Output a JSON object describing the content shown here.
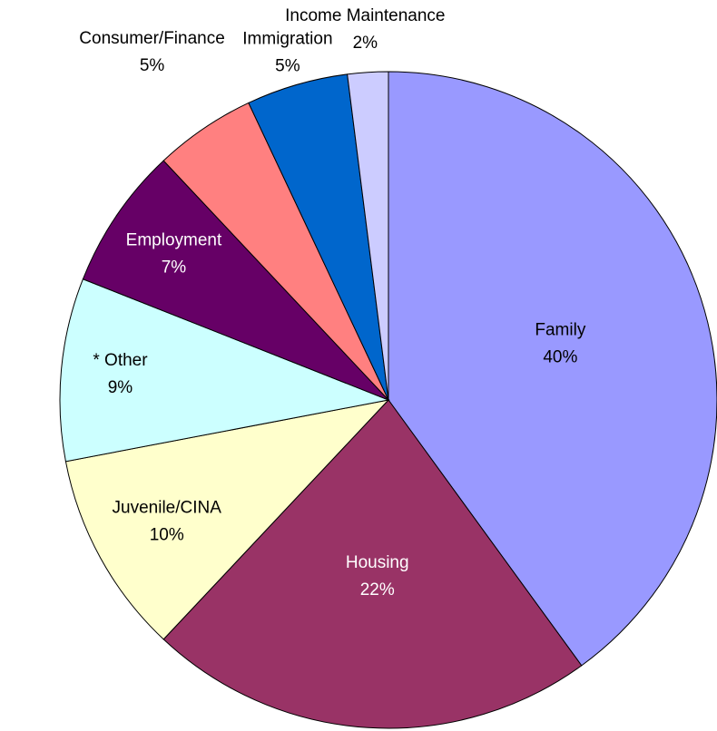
{
  "chart_data": {
    "type": "pie",
    "categories": [
      "Family",
      "Housing",
      "Juvenile/CINA",
      "* Other",
      "Employment",
      "Consumer/Finance",
      "Immigration",
      "Income Maintenance"
    ],
    "values": [
      40,
      22,
      10,
      9,
      7,
      5,
      5,
      2
    ],
    "value_labels": [
      "40%",
      "22%",
      "10%",
      "9%",
      "7%",
      "5%",
      "5%",
      "2%"
    ],
    "colors": [
      "#9999ff",
      "#993366",
      "#ffffcc",
      "#ccffff",
      "#660066",
      "#ff8080",
      "#0066cc",
      "#ccccff"
    ]
  }
}
